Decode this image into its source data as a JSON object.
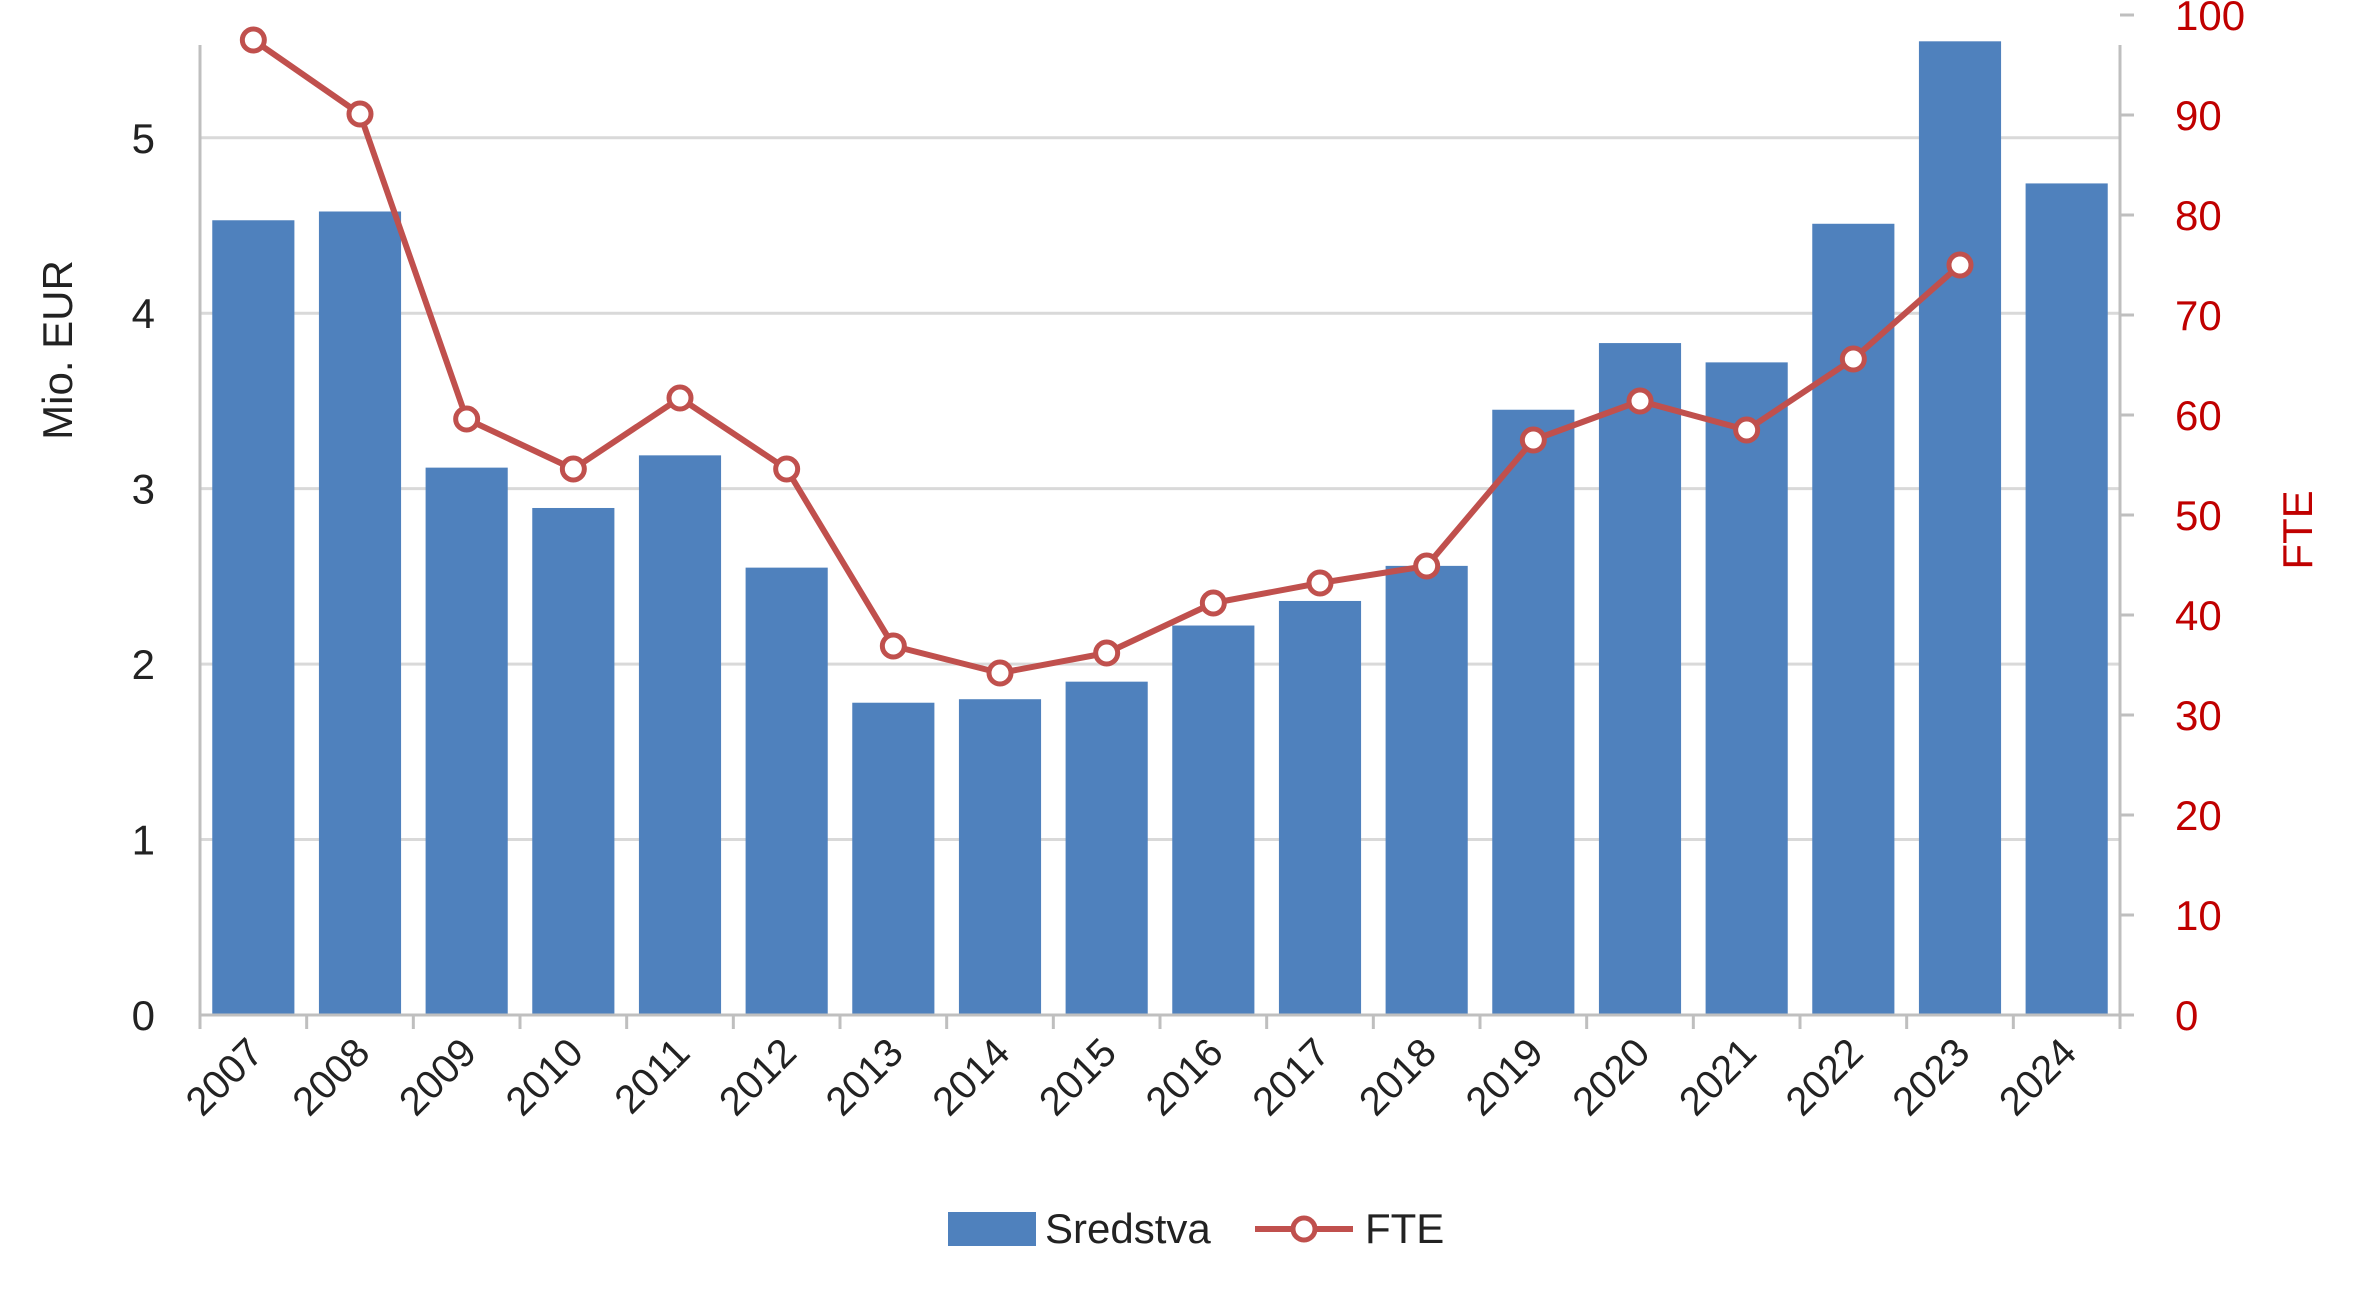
{
  "colors": {
    "bar": "#4F81BD",
    "line": "#C0504D",
    "right_axis": "#C00000",
    "grid": "#D9D9D9",
    "axis_line": "#BFBFBF",
    "text": "#222222"
  },
  "chart_data": {
    "type": "bar",
    "categories": [
      "2007",
      "2008",
      "2009",
      "2010",
      "2011",
      "2012",
      "2013",
      "2014",
      "2015",
      "2016",
      "2017",
      "2018",
      "2019",
      "2020",
      "2021",
      "2022",
      "2023",
      "2024"
    ],
    "series": [
      {
        "name": "Sredstva",
        "type": "bar",
        "axis": "left",
        "values": [
          4.53,
          4.58,
          3.12,
          2.89,
          3.19,
          2.55,
          1.78,
          1.8,
          1.9,
          2.22,
          2.36,
          2.56,
          3.45,
          3.83,
          3.72,
          4.51,
          5.55,
          4.74
        ]
      },
      {
        "name": "FTE",
        "type": "line",
        "axis": "right",
        "marker": "open-circle",
        "values": [
          97.5,
          90.1,
          59.6,
          54.6,
          61.7,
          54.6,
          36.9,
          34.2,
          36.2,
          41.2,
          43.2,
          44.9,
          57.5,
          61.4,
          58.5,
          65.6,
          75.0,
          null
        ]
      }
    ],
    "left_axis": {
      "label": "Mio. EUR",
      "range": [
        0,
        5.7
      ],
      "ticks": [
        0,
        1,
        2,
        3,
        4,
        5
      ]
    },
    "right_axis": {
      "label": "FTE",
      "range": [
        0,
        100
      ],
      "ticks": [
        0,
        10,
        20,
        30,
        40,
        50,
        60,
        70,
        80,
        90,
        100
      ]
    },
    "grid": true,
    "legend_position": "bottom",
    "legend_entries": [
      "Sredstva",
      "FTE"
    ]
  }
}
